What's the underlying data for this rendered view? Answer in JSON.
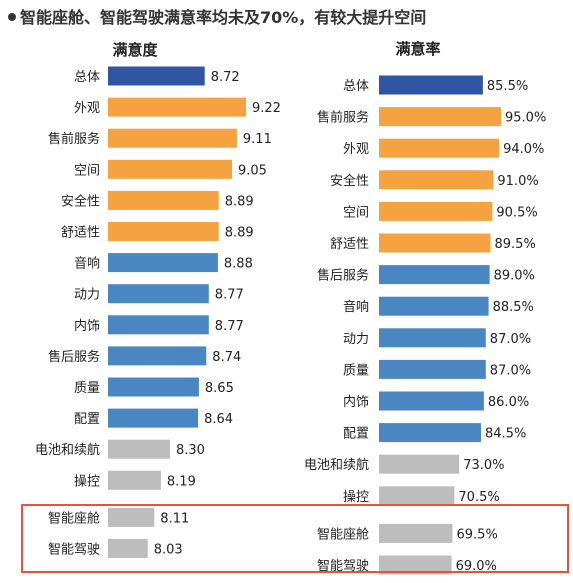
{
  "headline": "智能座舱、智能驾驶满意率均未及70%，有较大提升空间",
  "colors": {
    "overall": "#2F55A4",
    "top": "#F4A340",
    "middle": "#4A86C2",
    "low": "#BDBDBD",
    "highlight_border": "#E8533B"
  },
  "chart_data": [
    {
      "type": "bar",
      "orientation": "horizontal",
      "title": "满意度",
      "categories": [
        "总体",
        "外观",
        "售前服务",
        "空间",
        "安全性",
        "舒适性",
        "音响",
        "动力",
        "内饰",
        "售后服务",
        "质量",
        "配置",
        "电池和续航",
        "操控",
        "智能座舱",
        "智能驾驶"
      ],
      "values": [
        8.72,
        9.22,
        9.11,
        9.05,
        8.89,
        8.89,
        8.88,
        8.77,
        8.77,
        8.74,
        8.65,
        8.64,
        8.3,
        8.19,
        8.11,
        8.03
      ],
      "value_labels": [
        "8.72",
        "9.22",
        "9.11",
        "9.05",
        "8.89",
        "8.89",
        "8.88",
        "8.77",
        "8.77",
        "8.74",
        "8.65",
        "8.64",
        "8.30",
        "8.19",
        "8.11",
        "8.03"
      ],
      "color_groups": [
        "overall",
        "top",
        "top",
        "top",
        "top",
        "top",
        "middle",
        "middle",
        "middle",
        "middle",
        "middle",
        "middle",
        "low",
        "low",
        "low",
        "low"
      ],
      "highlighted": [
        "智能座舱",
        "智能驾驶"
      ]
    },
    {
      "type": "bar",
      "orientation": "horizontal",
      "title": "满意率",
      "categories": [
        "总体",
        "售前服务",
        "外观",
        "安全性",
        "空间",
        "舒适性",
        "售后服务",
        "音响",
        "动力",
        "质量",
        "内饰",
        "配置",
        "电池和续航",
        "操控",
        "智能座舱",
        "智能驾驶"
      ],
      "values": [
        85.5,
        95.0,
        94.0,
        91.0,
        90.5,
        89.5,
        89.0,
        88.5,
        87.0,
        87.0,
        86.0,
        84.5,
        73.0,
        70.5,
        69.5,
        69.0
      ],
      "value_labels": [
        "85.5%",
        "95.0%",
        "94.0%",
        "91.0%",
        "90.5%",
        "89.5%",
        "89.0%",
        "88.5%",
        "87.0%",
        "87.0%",
        "86.0%",
        "84.5%",
        "73.0%",
        "70.5%",
        "69.5%",
        "69.0%"
      ],
      "color_groups": [
        "overall",
        "top",
        "top",
        "top",
        "top",
        "top",
        "middle",
        "middle",
        "middle",
        "middle",
        "middle",
        "middle",
        "low",
        "low",
        "low",
        "low"
      ],
      "highlighted": [
        "智能座舱",
        "智能驾驶"
      ]
    }
  ]
}
